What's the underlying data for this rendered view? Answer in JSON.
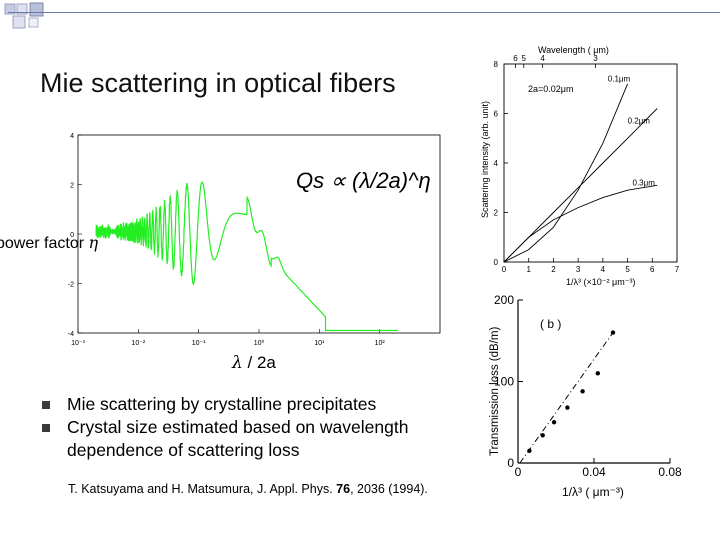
{
  "slide": {
    "title": "Mie scattering in optical fibers",
    "y_label_prefix": "power factor ",
    "y_label_symbol": "η",
    "x_label_symbol": "λ",
    "x_label_rest": " / 2a",
    "bullets": [
      "Mie scattering by crystalline precipitates",
      "Crystal size estimated based on wavelength dependence of scattering loss"
    ],
    "reference_pre": "T. Katsuyama and H. Matsumura, J. Appl. Phys. ",
    "reference_volume": "76",
    "reference_post": ", 2036 (1994).",
    "colors": {
      "curve": "#22ee22",
      "accent": "#6a7aa8"
    }
  },
  "chart_data": [
    {
      "type": "line",
      "formula": "Qs ∝ (λ/2a)^η",
      "xscale": "log",
      "xlim": [
        0.001,
        1000
      ],
      "ylim": [
        -4,
        4
      ],
      "x_ticks": [
        "10⁻³",
        "10⁻²",
        "10⁻¹",
        "10⁰",
        "10¹",
        "10²"
      ],
      "y_ticks": [
        "4",
        "2",
        "0",
        "-2",
        "-4"
      ],
      "grid": false
    },
    {
      "type": "line",
      "xlabel": "1/λ³ (×10⁻² μm⁻³)",
      "ylabel": "Scattering intensity (arb. unit)",
      "top_axis_label": "Wavelength ( μm)",
      "top_ticks": [
        "6",
        "5",
        "4",
        "3",
        "2",
        "1.5"
      ],
      "x_ticks": [
        "0",
        "1",
        "2",
        "3",
        "4",
        "5",
        "6",
        "7"
      ],
      "y_ticks": [
        "0",
        "2",
        "4",
        "6",
        "8"
      ],
      "xlim": [
        0,
        7
      ],
      "ylim": [
        0,
        8
      ],
      "annotation": "2a=0.02μm",
      "series": [
        {
          "name": "0.1μm",
          "x": [
            0,
            1,
            2,
            3,
            4,
            5
          ],
          "y": [
            0,
            0.5,
            1.4,
            2.9,
            4.8,
            7.2
          ]
        },
        {
          "name": "0.2μm",
          "x": [
            0,
            1,
            2,
            3,
            4,
            5,
            6.2
          ],
          "y": [
            0,
            1.0,
            2.0,
            3.0,
            4.0,
            5.0,
            6.2
          ]
        },
        {
          "name": "0.3μm",
          "x": [
            0,
            1,
            2,
            3,
            4,
            5,
            6.2
          ],
          "y": [
            0,
            1.0,
            1.7,
            2.2,
            2.6,
            2.9,
            3.1
          ]
        }
      ]
    },
    {
      "type": "scatter",
      "panel_label": "( b )",
      "xlabel": "1/λ³ ( μm⁻³)",
      "ylabel": "Transmission loss (dB/m)",
      "x_ticks": [
        "0",
        "0.04",
        "0.08"
      ],
      "y_ticks": [
        "0",
        "100",
        "200"
      ],
      "xlim": [
        0,
        0.08
      ],
      "ylim": [
        0,
        200
      ],
      "series": [
        {
          "name": "",
          "x": [
            0.006,
            0.013,
            0.019,
            0.026,
            0.034,
            0.042,
            0.05
          ],
          "y": [
            15,
            34,
            50,
            68,
            88,
            110,
            160
          ]
        }
      ]
    }
  ]
}
